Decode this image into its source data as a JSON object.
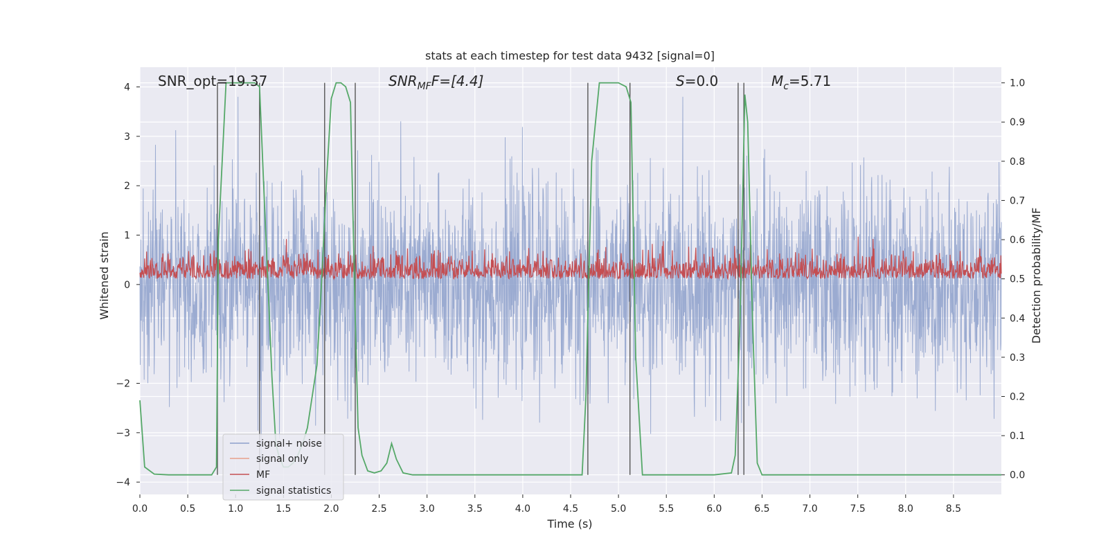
{
  "chart_data": {
    "type": "line",
    "title": "stats at each timestep for test data 9432 [signal=0]",
    "xlabel": "Time (s)",
    "ylabel": "Whitened strain",
    "ylabel_right": "Detection probability/MF",
    "xlim": [
      0.0,
      9.0
    ],
    "ylim": [
      -4.25,
      4.4
    ],
    "ylim_right": [
      -0.05,
      1.04
    ],
    "xticks": [
      "0.0",
      "0.5",
      "1.0",
      "1.5",
      "2.0",
      "2.5",
      "3.0",
      "3.5",
      "4.0",
      "4.5",
      "5.0",
      "5.5",
      "6.0",
      "6.5",
      "7.0",
      "7.5",
      "8.0",
      "8.5"
    ],
    "yticks": [
      "4",
      "3",
      "2",
      "1",
      "0",
      "−2",
      "−3",
      "−4"
    ],
    "yticks_right": [
      "1.0",
      "0.9",
      "0.8",
      "0.7",
      "0.6",
      "0.5",
      "0.4",
      "0.3",
      "0.2",
      "0.1",
      "0.0"
    ],
    "annotations": {
      "snr_opt": "SNR_opt=19.37",
      "snr_mf_base": "SNR",
      "snr_mf_sub": "MF",
      "snr_mf_rest": "F=[4.4]",
      "s_var": "S",
      "s_val": "=0.0",
      "mc_var": "M",
      "mc_sub": "c",
      "mc_val": "=5.71"
    },
    "vertical_lines_x": [
      0.81,
      1.25,
      1.93,
      2.25,
      4.68,
      5.12,
      6.25,
      6.31
    ],
    "series": [
      {
        "name": "signal+ noise",
        "color": "#8da0cb",
        "axis": "left",
        "envelope": {
          "mean": 0.0,
          "std": 1.0,
          "peak_max": 3.8,
          "peak_min": -3.9
        }
      },
      {
        "name": "signal only",
        "color": "#e8a08a",
        "axis": "left",
        "values": []
      },
      {
        "name": "MF",
        "color": "#c44e52",
        "axis": "right",
        "envelope": {
          "min": 0.5,
          "typical_max": 0.56,
          "peak_max": 0.62
        }
      },
      {
        "name": "signal statistics",
        "color": "#55a868",
        "axis": "right",
        "x": [
          0.0,
          0.05,
          0.15,
          0.3,
          0.75,
          0.8,
          0.82,
          0.9,
          1.0,
          1.2,
          1.25,
          1.3,
          1.38,
          1.42,
          1.45,
          1.5,
          1.55,
          1.6,
          1.65,
          1.7,
          1.75,
          1.8,
          1.85,
          1.9,
          1.95,
          2.0,
          2.05,
          2.1,
          2.15,
          2.2,
          2.25,
          2.28,
          2.32,
          2.38,
          2.45,
          2.52,
          2.58,
          2.63,
          2.68,
          2.75,
          2.85,
          3.0,
          4.0,
          4.62,
          4.66,
          4.72,
          4.8,
          5.0,
          5.08,
          5.13,
          5.18,
          5.25,
          5.5,
          6.0,
          6.18,
          6.22,
          6.27,
          6.32,
          6.35,
          6.4,
          6.45,
          6.5,
          6.6,
          7.0,
          8.0,
          9.0
        ],
        "values": [
          0.19,
          0.02,
          0.002,
          0.0,
          0.0,
          0.02,
          0.6,
          1.0,
          1.0,
          1.0,
          0.99,
          0.7,
          0.25,
          0.08,
          0.05,
          0.02,
          0.02,
          0.03,
          0.05,
          0.08,
          0.12,
          0.2,
          0.28,
          0.5,
          0.75,
          0.96,
          1.0,
          1.0,
          0.99,
          0.95,
          0.4,
          0.12,
          0.05,
          0.01,
          0.005,
          0.01,
          0.03,
          0.08,
          0.04,
          0.005,
          0.0,
          0.0,
          0.0,
          0.0,
          0.2,
          0.8,
          1.0,
          1.0,
          0.99,
          0.95,
          0.3,
          0.0,
          0.0,
          0.0,
          0.005,
          0.05,
          0.4,
          0.97,
          0.9,
          0.4,
          0.03,
          0.0,
          0.0,
          0.0,
          0.0,
          0.0
        ]
      }
    ],
    "legend_location": "lower-left"
  }
}
